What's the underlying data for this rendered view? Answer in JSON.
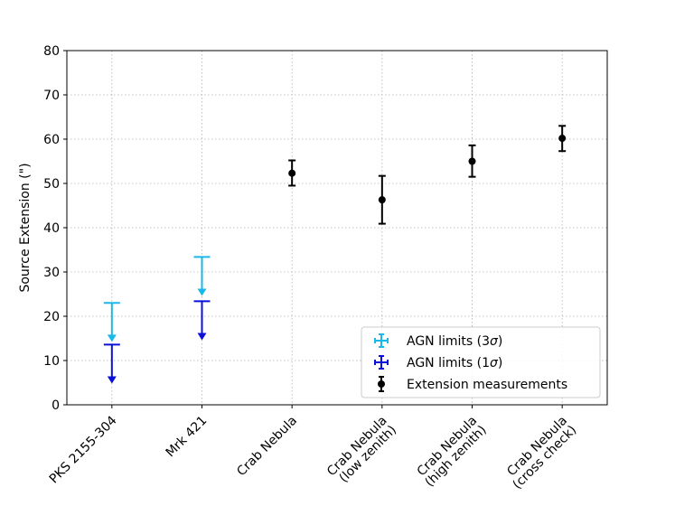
{
  "chart_data": {
    "type": "scatter",
    "title": "",
    "xlabel": "",
    "ylabel": "Source Extension (\")",
    "ylim": [
      0,
      80
    ],
    "yticks": [
      0,
      10,
      20,
      30,
      40,
      50,
      60,
      70,
      80
    ],
    "grid": true,
    "legend_position": "lower-right",
    "categories": [
      [
        "PKS 2155-304"
      ],
      [
        "Mrk 421"
      ],
      [
        "Crab Nebula"
      ],
      [
        "Crab Nebula",
        "(low zenith)"
      ],
      [
        "Crab Nebula",
        "(high zenith)"
      ],
      [
        "Crab Nebula",
        "(cross check)"
      ]
    ],
    "series": [
      {
        "name": "AGN limits (3σ)",
        "legend_main": "AGN limits (3",
        "legend_sym": "σ",
        "legend_close": ")",
        "kind": "upper_limit",
        "color": "#1ab8e8",
        "points": [
          {
            "x": 0,
            "upper": 23.0,
            "arrow_to": 14.2
          },
          {
            "x": 1,
            "upper": 33.4,
            "arrow_to": 24.6
          }
        ]
      },
      {
        "name": "AGN limits (1σ)",
        "legend_main": "AGN limits (1",
        "legend_sym": "σ",
        "legend_close": ")",
        "kind": "upper_limit",
        "color": "#0b10d8",
        "points": [
          {
            "x": 0,
            "upper": 13.6,
            "arrow_to": 4.8
          },
          {
            "x": 1,
            "upper": 23.4,
            "arrow_to": 14.6
          }
        ]
      },
      {
        "name": "Extension measurements",
        "legend_main": "Extension measurements",
        "legend_sym": "",
        "legend_close": "",
        "kind": "errorbar",
        "color": "#000000",
        "points": [
          {
            "x": 2,
            "y": 52.3,
            "low": 49.5,
            "high": 55.2
          },
          {
            "x": 3,
            "y": 46.3,
            "low": 40.9,
            "high": 51.7
          },
          {
            "x": 4,
            "y": 55.0,
            "low": 51.5,
            "high": 58.6
          },
          {
            "x": 5,
            "y": 60.2,
            "low": 57.3,
            "high": 63.0
          }
        ]
      }
    ]
  }
}
